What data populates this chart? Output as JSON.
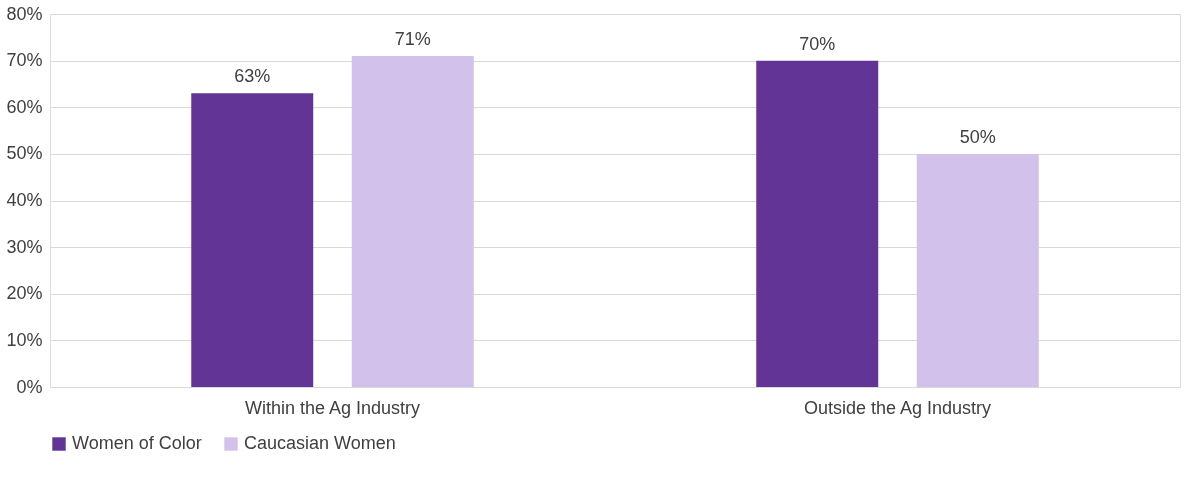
{
  "chart_data": {
    "type": "bar",
    "categories": [
      "Within the Ag Industry",
      "Outside the Ag Industry"
    ],
    "series": [
      {
        "name": "Women of Color",
        "color": "#613495",
        "values": [
          63,
          70
        ],
        "value_labels": [
          "63%",
          "70%"
        ]
      },
      {
        "name": "Caucasian Women",
        "color": "#d2c1ea",
        "values": [
          71,
          50
        ],
        "value_labels": [
          "71%",
          "50%"
        ]
      }
    ],
    "ylim": [
      0,
      80
    ],
    "yticks": [
      {
        "value": 0,
        "label": "0%"
      },
      {
        "value": 10,
        "label": "10%"
      },
      {
        "value": 20,
        "label": "20%"
      },
      {
        "value": 30,
        "label": "30%"
      },
      {
        "value": 40,
        "label": "40%"
      },
      {
        "value": 50,
        "label": "50%"
      },
      {
        "value": 60,
        "label": "60%"
      },
      {
        "value": 70,
        "label": "70%"
      },
      {
        "value": 80,
        "label": "80%"
      }
    ],
    "grid": "y",
    "legend": "bottom"
  }
}
